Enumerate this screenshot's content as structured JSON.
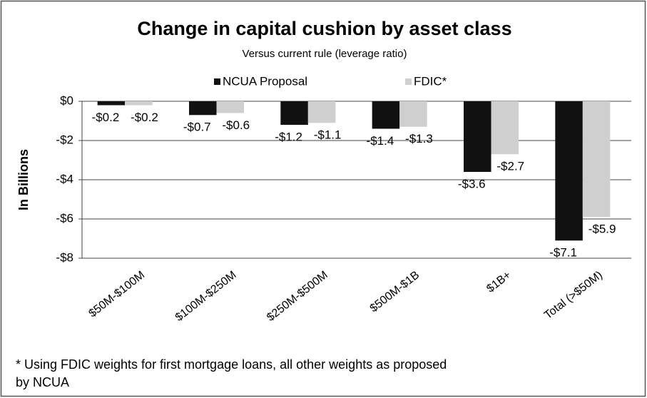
{
  "chart_data": {
    "type": "bar",
    "title": "Change in capital cushion by asset class",
    "subtitle": "Versus current rule (leverage ratio)",
    "y_label": "In Billions",
    "categories": [
      "$50M-$100M",
      "$100M-$250M",
      "$250M-$500M",
      "$500M-$1B",
      "$1B+",
      "Total (>$50M)"
    ],
    "series": [
      {
        "name": "NCUA Proposal",
        "color": "#111111",
        "values": [
          -0.2,
          -0.7,
          -1.2,
          -1.4,
          -3.6,
          -7.1
        ],
        "value_labels": [
          "-$0.2",
          "-$0.7",
          "-$1.2",
          "-$1.4",
          "-$3.6",
          "-$7.1"
        ]
      },
      {
        "name": "FDIC*",
        "color": "#cfcfcf",
        "values": [
          -0.2,
          -0.6,
          -1.1,
          -1.3,
          -2.7,
          -5.9
        ],
        "value_labels": [
          "-$0.2",
          "-$0.6",
          "-$1.1",
          "-$1.3",
          "-$2.7",
          "-$5.9"
        ]
      }
    ],
    "ylim": [
      -8,
      0
    ],
    "yticks": [
      {
        "value": 0,
        "label": "$0"
      },
      {
        "value": -2,
        "label": "-$2"
      },
      {
        "value": -4,
        "label": "-$4"
      },
      {
        "value": -6,
        "label": "-$6"
      },
      {
        "value": -8,
        "label": "-$8"
      }
    ],
    "grid": true,
    "legend": "top",
    "footnote": [
      "* Using FDIC weights for first mortgage loans, all other weights as proposed",
      "by NCUA"
    ]
  }
}
